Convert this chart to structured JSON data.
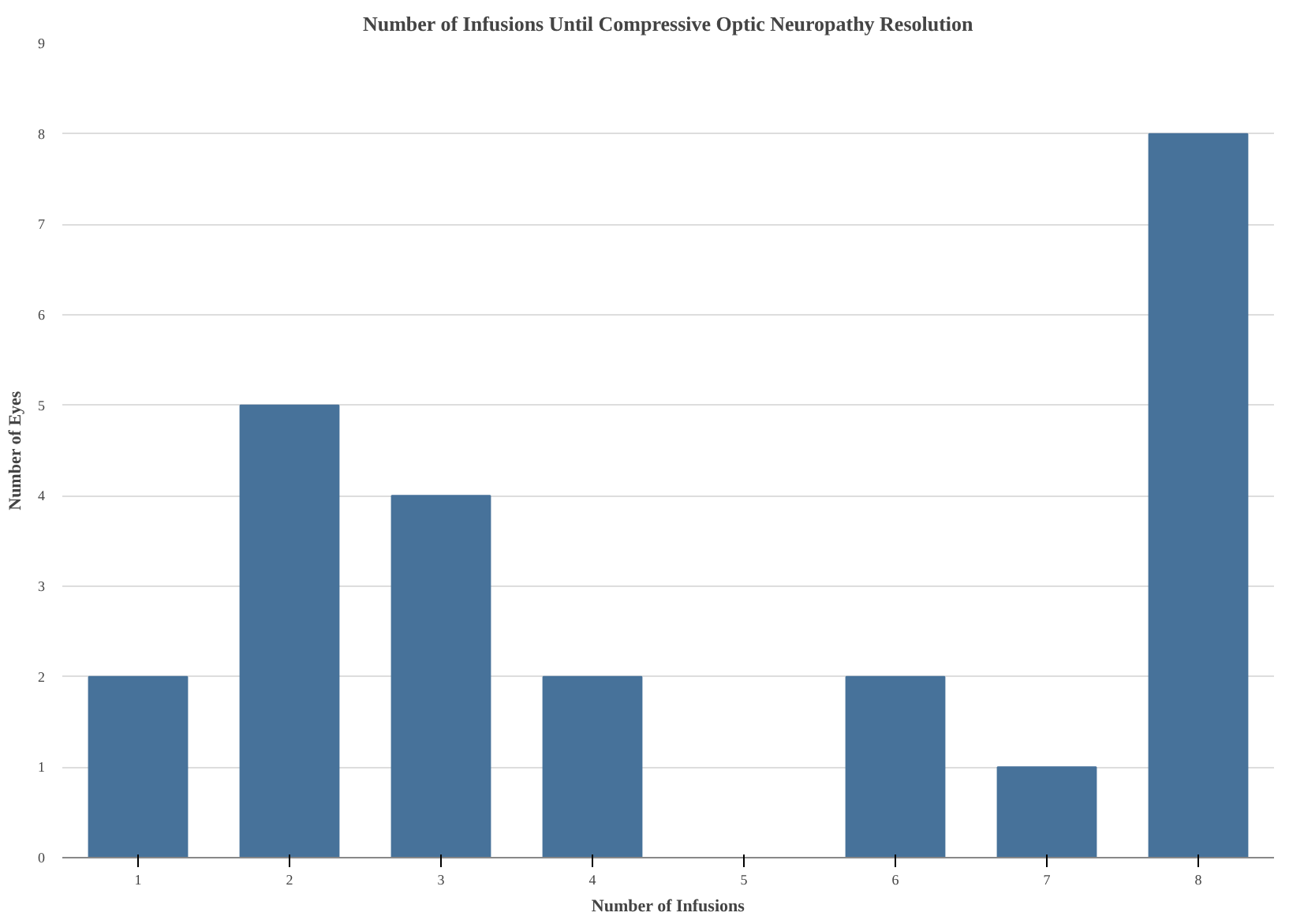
{
  "chart_data": {
    "type": "bar",
    "title": "Number of Infusions Until Compressive Optic Neuropathy Resolution",
    "xlabel": "Number of Infusions",
    "ylabel": "Number of Eyes",
    "categories": [
      "1",
      "2",
      "3",
      "4",
      "5",
      "6",
      "7",
      "8"
    ],
    "values": [
      2,
      5,
      4,
      2,
      0,
      2,
      1,
      8
    ],
    "color": "#47729a",
    "ylim": [
      0,
      9
    ],
    "yticks": [
      0,
      1,
      2,
      3,
      4,
      5,
      6,
      7,
      8,
      9
    ],
    "grid": "y"
  }
}
